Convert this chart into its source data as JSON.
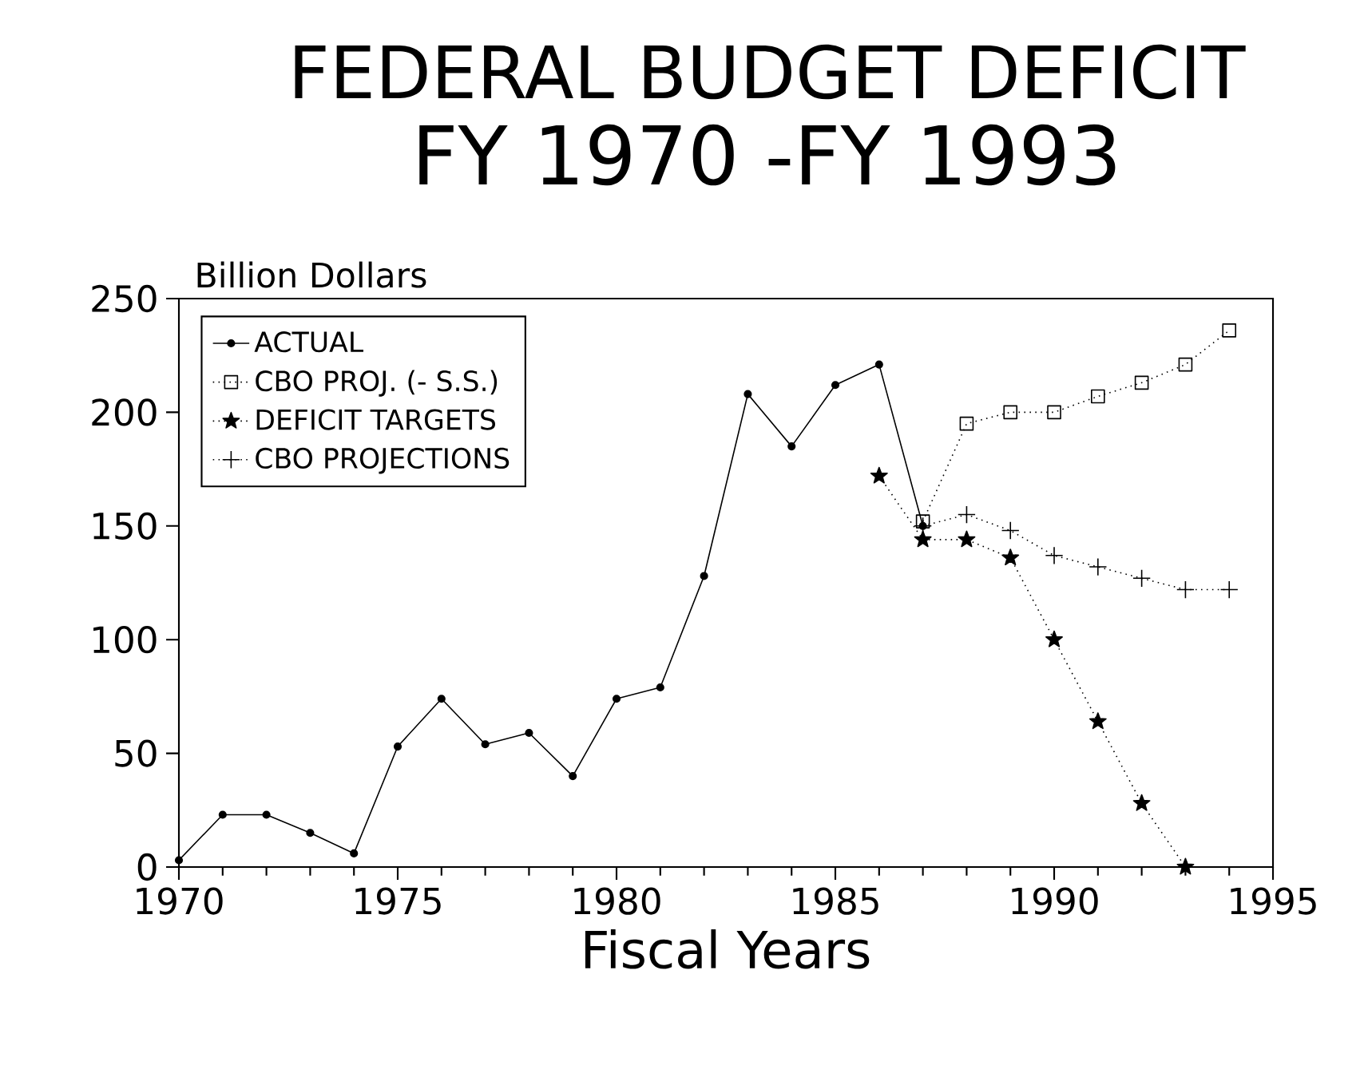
{
  "chart_data": {
    "type": "line",
    "title": "FEDERAL BUDGET DEFICIT",
    "subtitle": "FY 1970 -FY 1993",
    "xlabel": "Fiscal Years",
    "ylabel": "Billion Dollars",
    "xlim": [
      1970,
      1995
    ],
    "ylim": [
      0,
      250
    ],
    "xticks": [
      1970,
      1975,
      1980,
      1985,
      1990,
      1995
    ],
    "yticks": [
      0,
      50,
      100,
      150,
      200,
      250
    ],
    "grid": false,
    "legend": "top left",
    "series": [
      {
        "name": "ACTUAL",
        "color": "#000000",
        "marker": "circle",
        "line_style": "solid",
        "x": [
          1970,
          1971,
          1972,
          1973,
          1974,
          1975,
          1976,
          1977,
          1978,
          1979,
          1980,
          1981,
          1982,
          1983,
          1984,
          1985,
          1986,
          1987
        ],
        "values": [
          3,
          23,
          23,
          15,
          6,
          53,
          74,
          54,
          59,
          40,
          74,
          79,
          128,
          208,
          185,
          212,
          221,
          150
        ]
      },
      {
        "name": "CBO PROJ. (- S.S.)",
        "color": "#000000",
        "marker": "square",
        "line_style": "dotted",
        "x": [
          1987,
          1988,
          1989,
          1990,
          1991,
          1992,
          1993,
          1994
        ],
        "values": [
          152,
          195,
          200,
          200,
          207,
          213,
          221,
          236
        ]
      },
      {
        "name": "DEFICIT TARGETS",
        "color": "#000000",
        "marker": "star",
        "line_style": "dotted",
        "x": [
          1986,
          1987,
          1988,
          1989,
          1990,
          1991,
          1992,
          1993
        ],
        "values": [
          172,
          144,
          144,
          136,
          100,
          64,
          28,
          0
        ]
      },
      {
        "name": "CBO PROJECTIONS",
        "color": "#000000",
        "marker": "cross",
        "line_style": "dotted",
        "x": [
          1987,
          1988,
          1989,
          1990,
          1991,
          1992,
          1993,
          1994
        ],
        "values": [
          150,
          155,
          148,
          137,
          132,
          127,
          122,
          122
        ]
      }
    ]
  }
}
